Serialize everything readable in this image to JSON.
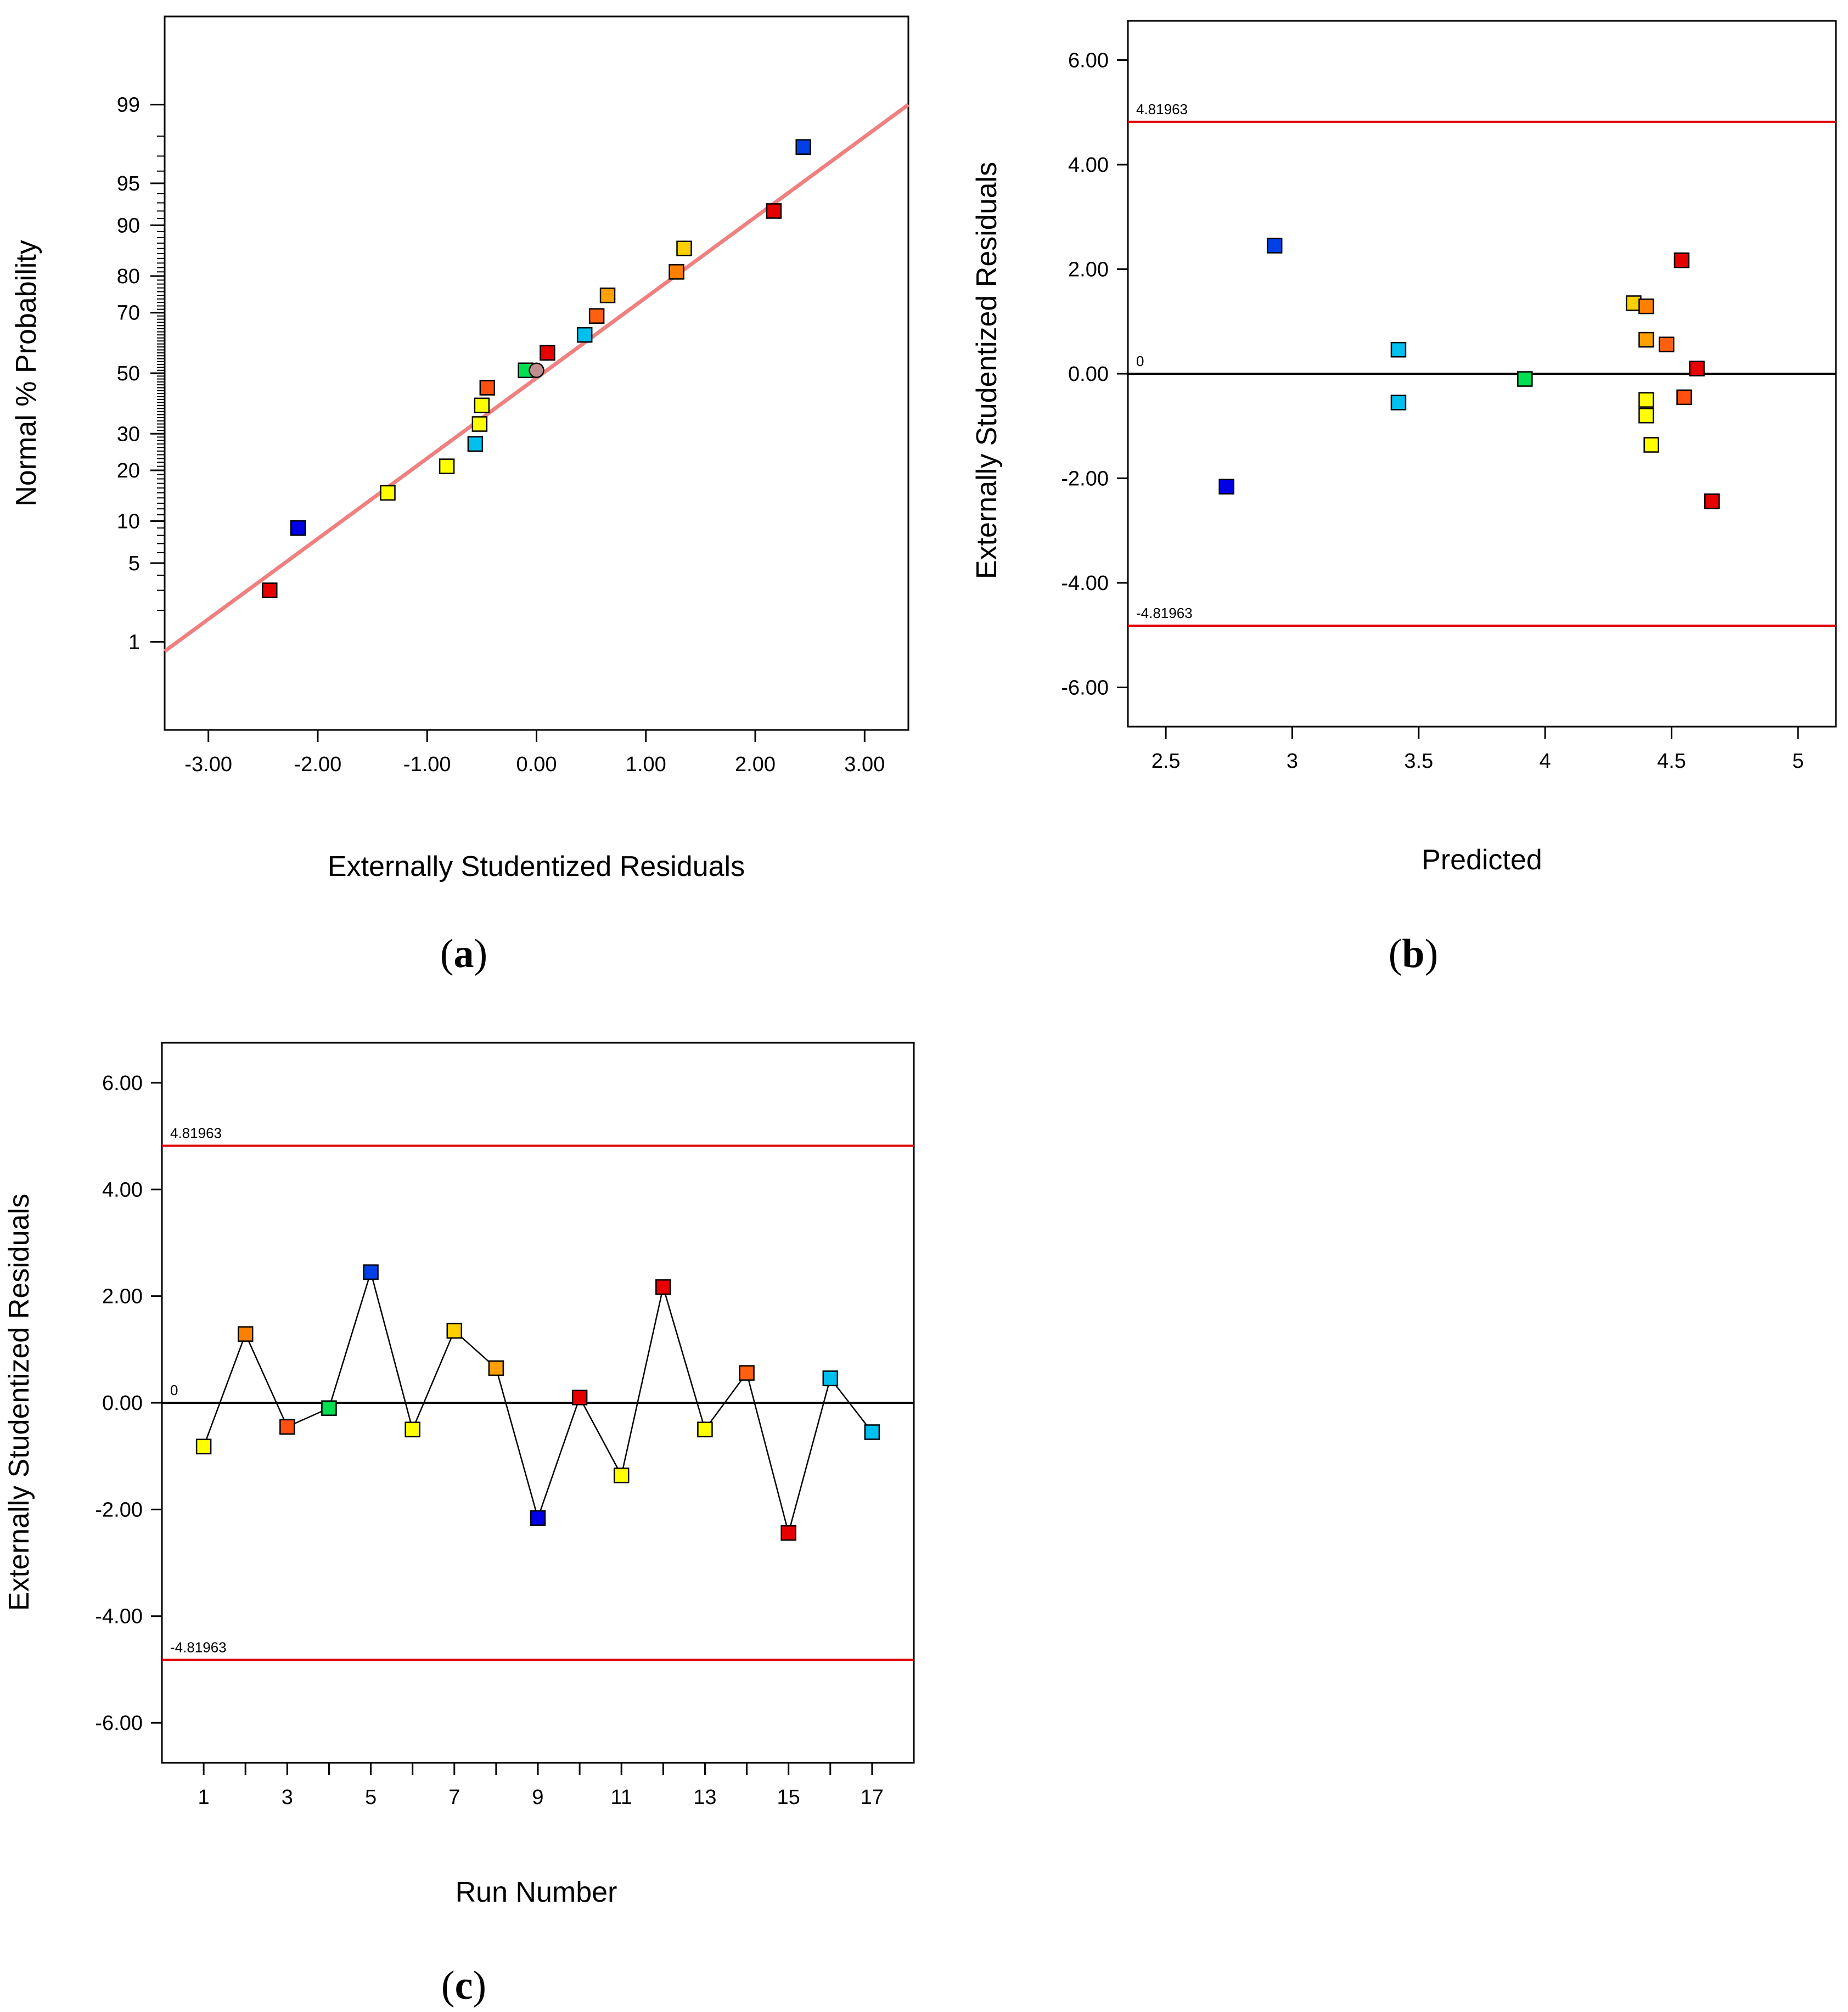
{
  "chart_data": [
    {
      "id": "a",
      "type": "scatter",
      "panel_label": "(a)",
      "panel_letter": "a",
      "xlabel": "Externally Studentized Residuals",
      "ylabel": "Normal % Probability",
      "xlim": [
        -3.4,
        3.4
      ],
      "ylim_percent": [
        0.1,
        99.9
      ],
      "x_ticks": [
        -3,
        -2,
        -1,
        0,
        1,
        2,
        3
      ],
      "x_tick_labels": [
        "-3.00",
        "-2.00",
        "-1.00",
        "0.00",
        "1.00",
        "2.00",
        "3.00"
      ],
      "y_ticks": [
        1,
        5,
        10,
        20,
        30,
        50,
        70,
        80,
        90,
        95,
        99
      ],
      "y_tick_labels": [
        "1",
        "5",
        "10",
        "20",
        "30",
        "50",
        "70",
        "80",
        "90",
        "95",
        "99"
      ],
      "fit_line": {
        "color": "#f08080",
        "x": [
          -3.4,
          3.4
        ],
        "y_percent": [
          0.8,
          99.0
        ]
      },
      "points": [
        {
          "x": -2.44,
          "p": 3.0,
          "color": "#e60000"
        },
        {
          "x": -2.18,
          "p": 9.0,
          "color": "#0000e6"
        },
        {
          "x": -1.36,
          "p": 15.0,
          "color": "#ffff00"
        },
        {
          "x": -0.82,
          "p": 21.0,
          "color": "#ffff00"
        },
        {
          "x": -0.56,
          "p": 27.0,
          "color": "#00c0f0"
        },
        {
          "x": -0.52,
          "p": 33.0,
          "color": "#ffff00"
        },
        {
          "x": -0.5,
          "p": 39.0,
          "color": "#ffff00"
        },
        {
          "x": -0.45,
          "p": 45.0,
          "color": "#ff5010"
        },
        {
          "x": -0.1,
          "p": 51.0,
          "color": "#00e050"
        },
        {
          "x": 0.0,
          "p": 51.0,
          "color": "#c09090",
          "shape": "circle"
        },
        {
          "x": 0.1,
          "p": 57.0,
          "color": "#e60000"
        },
        {
          "x": 0.44,
          "p": 63.0,
          "color": "#00c0f0"
        },
        {
          "x": 0.55,
          "p": 69.0,
          "color": "#ff6010"
        },
        {
          "x": 0.65,
          "p": 75.0,
          "color": "#ffa000"
        },
        {
          "x": 1.28,
          "p": 81.0,
          "color": "#ff8000"
        },
        {
          "x": 1.35,
          "p": 86.0,
          "color": "#ffd000"
        },
        {
          "x": 2.17,
          "p": 92.0,
          "color": "#e60000"
        },
        {
          "x": 2.44,
          "p": 97.5,
          "color": "#0040e6"
        }
      ]
    },
    {
      "id": "b",
      "type": "scatter",
      "panel_label": "(b)",
      "panel_letter": "b",
      "xlabel": "Predicted",
      "ylabel": "Externally Studentized Residuals",
      "xlim": [
        2.35,
        5.15
      ],
      "ylim": [
        -6.75,
        6.75
      ],
      "x_ticks": [
        2.5,
        3,
        3.5,
        4,
        4.5,
        5
      ],
      "x_tick_labels": [
        "2.5",
        "3",
        "3.5",
        "4",
        "4.5",
        "5"
      ],
      "y_ticks": [
        -6,
        -4,
        -2,
        0,
        2,
        4,
        6
      ],
      "y_tick_labels": [
        "-6.00",
        "-4.00",
        "-2.00",
        "0.00",
        "2.00",
        "4.00",
        "6.00"
      ],
      "upper_limit": 4.81963,
      "lower_limit": -4.81963,
      "upper_limit_label": "4.81963",
      "lower_limit_label": "-4.81963",
      "zero_label": "0",
      "limit_color": "#e00000",
      "points": [
        {
          "x": 2.74,
          "y": -2.16,
          "color": "#0000e6"
        },
        {
          "x": 2.93,
          "y": 2.45,
          "color": "#0040e6"
        },
        {
          "x": 3.42,
          "y": 0.46,
          "color": "#00c0f0"
        },
        {
          "x": 3.42,
          "y": -0.55,
          "color": "#00c0f0"
        },
        {
          "x": 3.92,
          "y": -0.1,
          "color": "#00e050"
        },
        {
          "x": 4.35,
          "y": 1.35,
          "color": "#ffd000"
        },
        {
          "x": 4.4,
          "y": 1.29,
          "color": "#ff8000"
        },
        {
          "x": 4.4,
          "y": 0.65,
          "color": "#ffa000"
        },
        {
          "x": 4.4,
          "y": -0.5,
          "color": "#ffff00"
        },
        {
          "x": 4.4,
          "y": -0.8,
          "color": "#ffff00"
        },
        {
          "x": 4.42,
          "y": -1.36,
          "color": "#ffff00"
        },
        {
          "x": 4.48,
          "y": 0.56,
          "color": "#ff6010"
        },
        {
          "x": 4.54,
          "y": 2.17,
          "color": "#e60000"
        },
        {
          "x": 4.55,
          "y": -0.45,
          "color": "#ff5010"
        },
        {
          "x": 4.6,
          "y": 0.1,
          "color": "#e60000"
        },
        {
          "x": 4.66,
          "y": -2.44,
          "color": "#e60000"
        }
      ]
    },
    {
      "id": "c",
      "type": "line",
      "panel_label": "(c)",
      "panel_letter": "c",
      "xlabel": "Run Number",
      "ylabel": "Externally Studentized Residuals",
      "xlim": [
        0,
        18
      ],
      "ylim": [
        -6.75,
        6.75
      ],
      "x_ticks": [
        1,
        3,
        5,
        7,
        9,
        11,
        13,
        15,
        17
      ],
      "x_minor_ticks": [
        2,
        4,
        6,
        8,
        10,
        12,
        14,
        16
      ],
      "x_tick_labels": [
        "1",
        "3",
        "5",
        "7",
        "9",
        "11",
        "13",
        "15",
        "17"
      ],
      "y_ticks": [
        -6,
        -4,
        -2,
        0,
        2,
        4,
        6
      ],
      "y_tick_labels": [
        "-6.00",
        "-4.00",
        "-2.00",
        "0.00",
        "2.00",
        "4.00",
        "6.00"
      ],
      "upper_limit": 4.81963,
      "lower_limit": -4.81963,
      "upper_limit_label": "4.81963",
      "lower_limit_label": "-4.81963",
      "zero_label": "0",
      "limit_color": "#e00000",
      "points": [
        {
          "x": 1,
          "y": -0.82,
          "color": "#ffff00"
        },
        {
          "x": 2,
          "y": 1.29,
          "color": "#ff8000"
        },
        {
          "x": 3,
          "y": -0.45,
          "color": "#ff5010"
        },
        {
          "x": 4,
          "y": -0.1,
          "color": "#00e050"
        },
        {
          "x": 5,
          "y": 2.45,
          "color": "#0040e6"
        },
        {
          "x": 6,
          "y": -0.5,
          "color": "#ffff00"
        },
        {
          "x": 7,
          "y": 1.35,
          "color": "#ffd000"
        },
        {
          "x": 8,
          "y": 0.65,
          "color": "#ffa000"
        },
        {
          "x": 9,
          "y": -2.16,
          "color": "#0000e6"
        },
        {
          "x": 10,
          "y": 0.1,
          "color": "#e60000"
        },
        {
          "x": 11,
          "y": -1.36,
          "color": "#ffff00"
        },
        {
          "x": 12,
          "y": 2.17,
          "color": "#e60000"
        },
        {
          "x": 13,
          "y": -0.5,
          "color": "#ffff00"
        },
        {
          "x": 14,
          "y": 0.56,
          "color": "#ff6010"
        },
        {
          "x": 15,
          "y": -2.44,
          "color": "#e60000"
        },
        {
          "x": 16,
          "y": 0.46,
          "color": "#00c0f0"
        },
        {
          "x": 17,
          "y": -0.55,
          "color": "#00c0f0"
        }
      ]
    }
  ]
}
